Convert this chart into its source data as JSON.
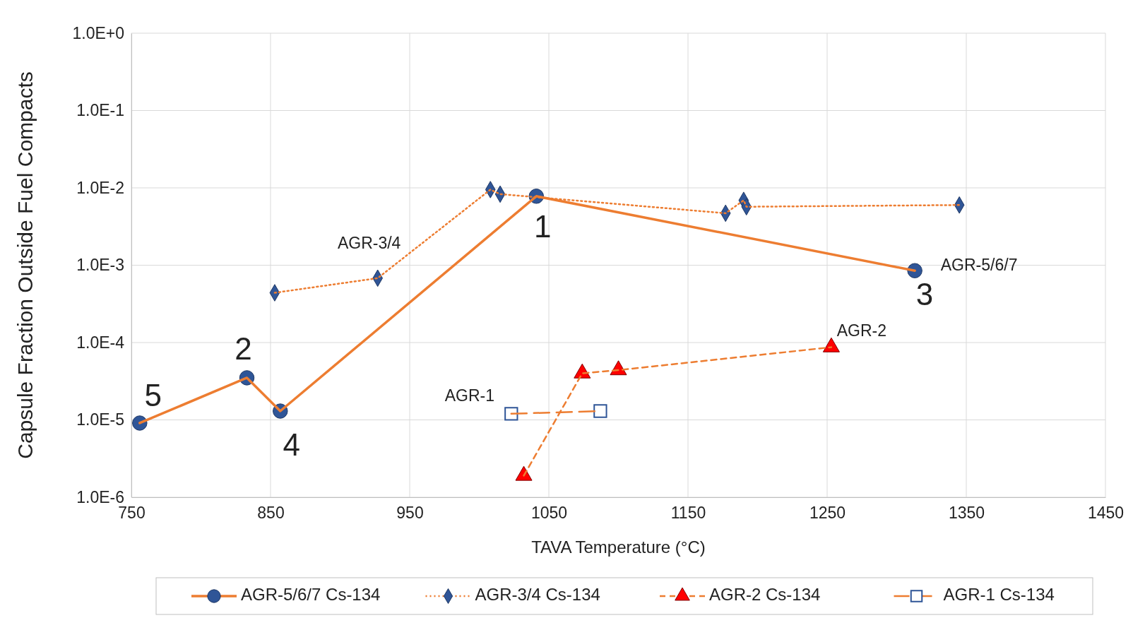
{
  "chart_data": {
    "type": "line",
    "xlabel": "TAVA Temperature (°C)",
    "ylabel": "Capsule  Fraction Outside Fuel Compacts",
    "log": "y",
    "grid": true,
    "legend": "bottom",
    "xlim": [
      750,
      1450
    ],
    "xticks": [
      750,
      850,
      950,
      1050,
      1150,
      1250,
      1350,
      1450
    ],
    "ylim": [
      1e-06,
      1
    ],
    "yticks": [
      {
        "value": 1e-06,
        "label": "1.0E-6"
      },
      {
        "value": 1e-05,
        "label": "1.0E-5"
      },
      {
        "value": 0.0001,
        "label": "1.0E-4"
      },
      {
        "value": 0.001,
        "label": "1.0E-3"
      },
      {
        "value": 0.01,
        "label": "1.0E-2"
      },
      {
        "value": 0.1,
        "label": "1.0E-1"
      },
      {
        "value": 1,
        "label": "1.0E+0"
      }
    ],
    "series": [
      {
        "name": "AGR-5/6/7 Cs-134",
        "color": "#ed7d31",
        "colors": [
          "#2f5597",
          "#2f5597",
          "#2f5597",
          "#2f5597",
          "#2f5597"
        ],
        "marker": "circle",
        "line_style": "solid",
        "x": [
          756,
          833,
          857,
          1041,
          1313
        ],
        "values": [
          9.1e-06,
          3.5e-05,
          1.3e-05,
          0.0078,
          0.00085
        ]
      },
      {
        "name": "AGR-3/4 Cs-134",
        "color": "#ed7d31",
        "colors": [
          "#2f5597",
          "#2f5597",
          "#2f5597",
          "#2f5597",
          "#2f5597",
          "#2f5597",
          "#2f5597",
          "#2f5597"
        ],
        "marker": "diamond",
        "line_style": "dotted",
        "x": [
          853,
          927,
          1008,
          1015,
          1177,
          1190,
          1192,
          1345
        ],
        "values": [
          0.00044,
          0.00068,
          0.0095,
          0.0083,
          0.0047,
          0.0069,
          0.0057,
          0.006
        ]
      },
      {
        "name": "AGR-2 Cs-134",
        "color": "#ed7d31",
        "colors": [
          "#ff0000",
          "#ff0000",
          "#ff0000",
          "#ff0000"
        ],
        "marker": "triangle",
        "line_style": "dashed",
        "x": [
          1032,
          1074,
          1100,
          1253
        ],
        "values": [
          1.9e-06,
          4e-05,
          4.4e-05,
          8.7e-05
        ]
      },
      {
        "name": "AGR-1 Cs-134",
        "color": "#ed7d31",
        "colors": [
          "#2f5597",
          "#2f5597"
        ],
        "marker": "square",
        "line_style": "longdash",
        "x": [
          1023,
          1087
        ],
        "values": [
          1.2e-05,
          1.3e-05
        ]
      }
    ],
    "annotations": [
      {
        "text": "AGR-3/4",
        "x": 927,
        "y": 0.00068
      },
      {
        "text": "AGR-5/6/7",
        "x": 1313,
        "y": 0.00085
      },
      {
        "text": "AGR-2",
        "x": 1253,
        "y": 8.7e-05
      },
      {
        "text": "AGR-1",
        "x": 1023,
        "y": 1.2e-05
      },
      {
        "text": "1",
        "x": 1041,
        "y": 0.0078
      },
      {
        "text": "2",
        "x": 833,
        "y": 3.5e-05
      },
      {
        "text": "3",
        "x": 1313,
        "y": 0.00085
      },
      {
        "text": "4",
        "x": 857,
        "y": 1.3e-05
      },
      {
        "text": "5",
        "x": 756,
        "y": 9.1e-06
      }
    ]
  }
}
